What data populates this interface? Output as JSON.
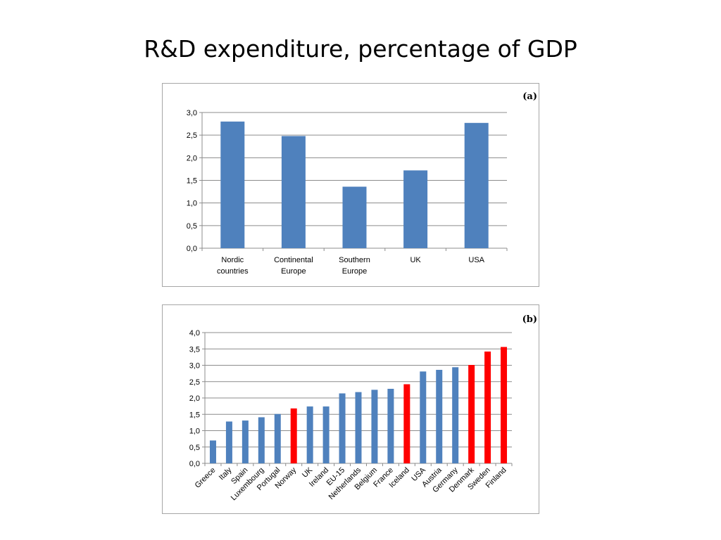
{
  "slide": {
    "title": "R&D expenditure, percentage of GDP"
  },
  "colors": {
    "blue_bar": "#4f81bd",
    "red_bar": "#ff0000"
  },
  "chart_data": [
    {
      "type": "bar",
      "panel_label": "(a)",
      "title": "",
      "xlabel": "",
      "ylabel": "",
      "categories": [
        [
          "Nordic",
          "countries"
        ],
        [
          "Continental",
          "Europe"
        ],
        [
          "Southern",
          "Europe"
        ],
        [
          "UK"
        ],
        [
          "USA"
        ]
      ],
      "values": [
        2.8,
        2.48,
        1.36,
        1.72,
        2.77
      ],
      "ylim": [
        0,
        3.0
      ],
      "yticks": [
        "0,0",
        "0,5",
        "1,0",
        "1,5",
        "2,0",
        "2,5",
        "3,0"
      ],
      "grid": true,
      "legend": "none"
    },
    {
      "type": "bar",
      "panel_label": "(b)",
      "title": "",
      "xlabel": "",
      "ylabel": "",
      "categories": [
        "Greece",
        "Italy",
        "Spain",
        "Luxembourg",
        "Portugal",
        "Norway",
        "UK",
        "Ireland",
        "EU-15",
        "Netherlands",
        "Belgium",
        "France",
        "Iceland",
        "USA",
        "Austria",
        "Germany",
        "Denmark",
        "Sweden",
        "Finland"
      ],
      "values": [
        0.7,
        1.28,
        1.31,
        1.41,
        1.51,
        1.68,
        1.74,
        1.74,
        2.14,
        2.18,
        2.25,
        2.28,
        2.42,
        2.81,
        2.86,
        2.94,
        3.01,
        3.42,
        3.56
      ],
      "highlighted": [
        "Norway",
        "Iceland",
        "Denmark",
        "Sweden",
        "Finland"
      ],
      "ylim": [
        0,
        4.0
      ],
      "yticks": [
        "0,0",
        "0,5",
        "1,0",
        "1,5",
        "2,0",
        "2,5",
        "3,0",
        "3,5",
        "4,0"
      ],
      "grid": true,
      "legend": "none"
    }
  ]
}
